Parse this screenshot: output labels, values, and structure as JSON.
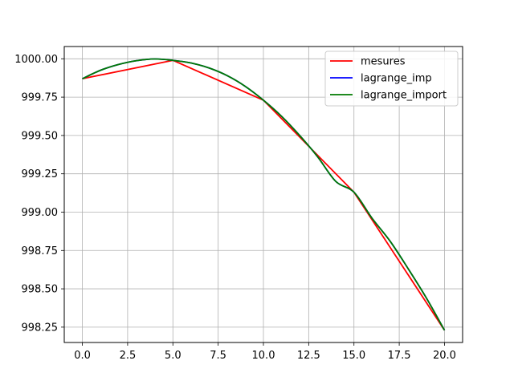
{
  "chart_data": {
    "type": "line",
    "title": "",
    "xlabel": "",
    "ylabel": "",
    "xlim": [
      -1.0,
      21.0
    ],
    "ylim": [
      998.15,
      1000.08
    ],
    "xticks": [
      0,
      2.5,
      5,
      7.5,
      10,
      12.5,
      15,
      17.5,
      20
    ],
    "xtick_labels": [
      "0.0",
      "2.5",
      "5.0",
      "7.5",
      "10.0",
      "12.5",
      "15.0",
      "17.5",
      "20.0"
    ],
    "yticks": [
      998.25,
      998.5,
      998.75,
      999.0,
      999.25,
      999.5,
      999.75,
      1000.0
    ],
    "ytick_labels": [
      "998.25",
      "998.50",
      "998.75",
      "999.00",
      "999.25",
      "999.50",
      "999.75",
      "1000.00"
    ],
    "grid": true,
    "legend_position": "top-right",
    "series": [
      {
        "name": "mesures",
        "color": "#ff0000",
        "x": [
          0,
          5,
          10,
          15,
          20
        ],
        "y": [
          999.87,
          999.99,
          999.73,
          999.13,
          998.23
        ]
      },
      {
        "name": "lagrange_imp",
        "color": "#0000ff",
        "x": [
          0,
          1,
          2,
          3,
          4,
          5,
          6,
          7,
          8,
          9,
          10,
          11,
          12,
          13,
          14,
          15,
          16,
          17,
          18,
          19,
          20
        ],
        "y": [
          999.87,
          999.925,
          999.963,
          999.988,
          999.999,
          999.99,
          999.973,
          999.94,
          999.89,
          999.82,
          999.73,
          999.625,
          999.5,
          999.36,
          999.2,
          999.13,
          998.96,
          998.81,
          998.63,
          998.44,
          998.23
        ]
      },
      {
        "name": "lagrange_import",
        "color": "#007a00",
        "x": [
          0,
          1,
          2,
          3,
          4,
          5,
          6,
          7,
          8,
          9,
          10,
          11,
          12,
          13,
          14,
          15,
          16,
          17,
          18,
          19,
          20
        ],
        "y": [
          999.87,
          999.925,
          999.963,
          999.988,
          999.999,
          999.99,
          999.973,
          999.94,
          999.89,
          999.82,
          999.73,
          999.625,
          999.5,
          999.36,
          999.2,
          999.13,
          998.96,
          998.81,
          998.63,
          998.44,
          998.23
        ]
      }
    ]
  }
}
